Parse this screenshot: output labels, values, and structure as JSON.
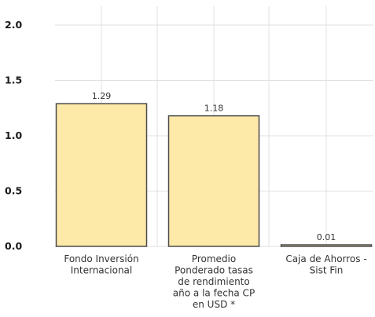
{
  "chart_data": {
    "type": "bar",
    "categories": [
      [
        "Fondo Inversión",
        "Internacional"
      ],
      [
        "Promedio",
        "Ponderado tasas",
        "de rendimiento",
        "año a la fecha CP",
        "en USD *"
      ],
      [
        "Caja de Ahorros -",
        "Sist Fin"
      ]
    ],
    "values": [
      1.29,
      1.18,
      0.01
    ],
    "data_labels": [
      "1.29",
      "1.18",
      "0.01"
    ],
    "ylim": [
      0,
      2.0
    ],
    "yticks": [
      "0.0",
      "0.5",
      "1.0",
      "1.5",
      "2.0"
    ],
    "grid": true,
    "colors": {
      "bar_fill": "#fde9a8",
      "bar_stroke": "#4a4a4a",
      "grid": "#e0e0e0"
    }
  }
}
